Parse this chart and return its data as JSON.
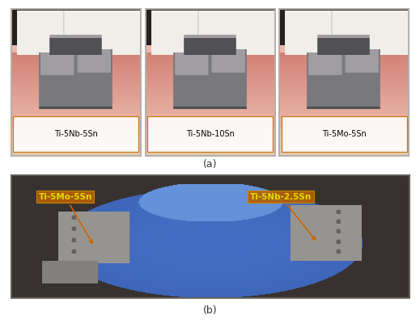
{
  "fig_width": 5.19,
  "fig_height": 4.0,
  "dpi": 100,
  "bg_color": "#ffffff",
  "top_row": {
    "images": [
      {
        "label": "Ti-5Nb-5Sn"
      },
      {
        "label": "Ti-5Nb-10Sn"
      },
      {
        "label": "Ti-5Mo-5Sn"
      }
    ],
    "caption": "(a)",
    "label_box_color_face": "#ffffff",
    "label_box_color_edge": "#cc6600",
    "label_text_color": "#000000",
    "label_fontsize": 7.0
  },
  "bottom_row": {
    "caption": "(b)",
    "annotation_left": {
      "text": "Ti-5Mo-5Sn",
      "text_color": "#dddd00",
      "box_facecolor": "#b86000",
      "box_edgecolor": "#cc8800",
      "arrow_color": "#cc6600"
    },
    "annotation_right": {
      "text": "Ti-5Nb-2.5Sn",
      "text_color": "#dddd00",
      "box_facecolor": "#b86000",
      "box_edgecolor": "#cc8800",
      "arrow_color": "#cc6600"
    }
  },
  "caption_fontsize": 9,
  "caption_color": "#333333",
  "gum_pink": [
    220,
    150,
    135
  ],
  "gum_pink2": [
    210,
    130,
    118
  ],
  "gum_light": [
    235,
    185,
    170
  ],
  "tooth_white": [
    240,
    238,
    232
  ],
  "tooth_shadow": [
    200,
    198,
    192
  ],
  "metal_dark": [
    80,
    80,
    85
  ],
  "metal_mid": [
    120,
    120,
    125
  ],
  "metal_light": [
    160,
    158,
    162
  ],
  "bg_dark": [
    35,
    32,
    30
  ],
  "beige_base": [
    225,
    205,
    175
  ],
  "blue_main": [
    68,
    110,
    195
  ],
  "blue_light": [
    100,
    145,
    215
  ],
  "blue_dark": [
    48,
    85,
    165
  ],
  "frame_silver": [
    150,
    148,
    145
  ],
  "frame_dark": [
    100,
    98,
    96
  ],
  "photo_bg_dark": [
    55,
    50,
    48
  ]
}
